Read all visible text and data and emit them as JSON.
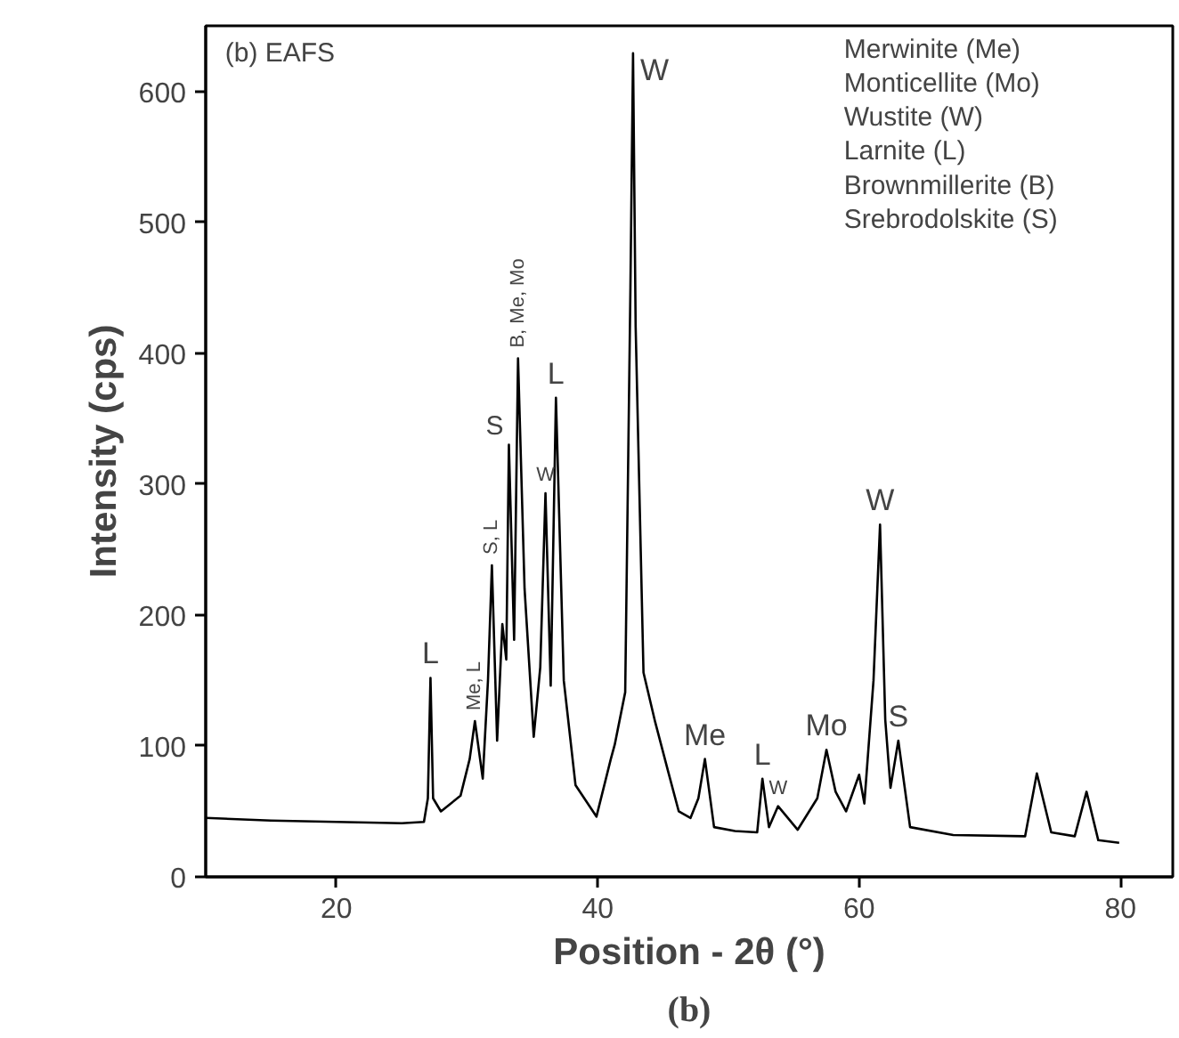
{
  "chart_data": {
    "type": "line",
    "xlabel": "Position - 2θ (°)",
    "ylabel": "Intensity (cps)",
    "xlim": [
      10,
      84
    ],
    "ylim": [
      0,
      650
    ],
    "xticks": [
      20,
      40,
      60,
      80
    ],
    "yticks": [
      0,
      100,
      200,
      300,
      400,
      500,
      600
    ],
    "grid": false,
    "marker": "none",
    "line_style": "solid",
    "series": [
      {
        "color": "#000000",
        "x": [
          10,
          15,
          20,
          25,
          26.7,
          27.0,
          27.2,
          27.4,
          28,
          29.5,
          30.2,
          30.6,
          31.2,
          31.6,
          31.9,
          32.3,
          32.7,
          33.0,
          33.2,
          33.6,
          33.9,
          34.4,
          35.1,
          35.6,
          36.0,
          36.4,
          36.8,
          37.4,
          38.3,
          39.9,
          41.0,
          41.3,
          42.1,
          42.5,
          42.7,
          42.9,
          43.5,
          44.4,
          45.4,
          46.2,
          47.1,
          47.7,
          48.2,
          48.9,
          50.5,
          52.2,
          52.6,
          53.1,
          53.8,
          55.3,
          56.8,
          57.5,
          58.2,
          59.0,
          60.0,
          60.4,
          61.1,
          61.6,
          62.0,
          62.4,
          63.0,
          63.9,
          67.2,
          72.7,
          73.6,
          74.7,
          76.5,
          77.4,
          78.3,
          79.9
        ],
        "values": [
          45,
          43,
          42,
          41,
          42,
          60,
          152,
          60,
          50,
          62,
          90,
          119,
          75,
          150,
          238,
          104,
          193,
          166,
          330,
          181,
          396,
          220,
          107,
          160,
          293,
          146,
          366,
          150,
          70,
          46,
          90,
          101,
          141,
          450,
          629,
          420,
          156,
          118,
          80,
          50,
          45,
          60,
          90,
          38,
          35,
          34,
          75,
          38,
          54,
          36,
          60,
          97,
          65,
          50,
          78,
          56,
          150,
          269,
          120,
          68,
          104,
          38,
          32,
          31,
          79,
          34,
          31,
          65,
          28,
          26
        ]
      }
    ],
    "annotations": [
      "(b) EAFS",
      "Merwinite (Me)",
      "Monticellite (Mo)",
      "Wustite (W)",
      "Larnite (L)",
      "Brownmillerite (B)",
      "Srebrodolskite (S)",
      {
        "text": "L",
        "x": 27.2,
        "y": 152
      },
      {
        "text": "Me, L",
        "x": 30.6,
        "y": 119
      },
      {
        "text": "S, L",
        "x": 31.9,
        "y": 238
      },
      {
        "text": "S",
        "x": 33.2,
        "y": 330
      },
      {
        "text": "B, Me, Mo",
        "x": 33.9,
        "y": 396
      },
      {
        "text": "W",
        "x": 36.0,
        "y": 293
      },
      {
        "text": "L",
        "x": 36.8,
        "y": 366
      },
      {
        "text": "W",
        "x": 42.7,
        "y": 629
      },
      {
        "text": "Me",
        "x": 48.2,
        "y": 90
      },
      {
        "text": "L",
        "x": 52.6,
        "y": 75
      },
      {
        "text": "W",
        "x": 53.8,
        "y": 54
      },
      {
        "text": "Mo",
        "x": 57.5,
        "y": 97
      },
      {
        "text": "W",
        "x": 61.6,
        "y": 269
      },
      {
        "text": "S",
        "x": 63.0,
        "y": 104
      },
      "(b)"
    ]
  }
}
